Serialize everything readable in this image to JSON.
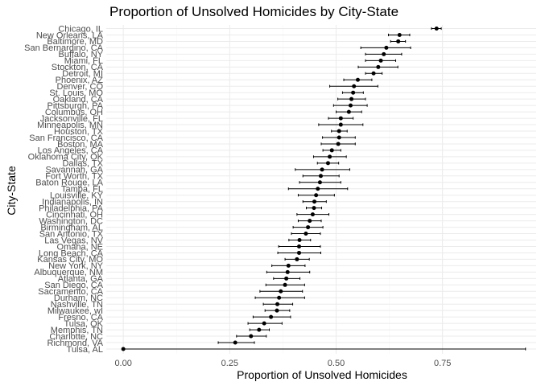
{
  "chart_data": {
    "type": "scatter",
    "title": "Proportion of Unsolved Homicides by City-State",
    "xlabel": "Proportion of Unsolved Homicides",
    "ylabel": "City-State",
    "xlim": [
      -0.04,
      0.97
    ],
    "x_ticks": [
      0.0,
      0.25,
      0.5,
      0.75
    ],
    "x_tick_labels": [
      "0.00",
      "0.25",
      "0.50",
      "0.75"
    ],
    "grid": true,
    "error_bars": true,
    "points": [
      {
        "city": "Chicago, IL",
        "estimate": 0.736,
        "low": 0.724,
        "high": 0.747
      },
      {
        "city": "New Orleans, LA",
        "estimate": 0.649,
        "low": 0.623,
        "high": 0.673
      },
      {
        "city": "Baltimore, MD",
        "estimate": 0.646,
        "low": 0.628,
        "high": 0.663
      },
      {
        "city": "San Bernardino, CA",
        "estimate": 0.618,
        "low": 0.558,
        "high": 0.675
      },
      {
        "city": "Buffalo, NY",
        "estimate": 0.612,
        "low": 0.569,
        "high": 0.654
      },
      {
        "city": "Miami, FL",
        "estimate": 0.605,
        "low": 0.569,
        "high": 0.64
      },
      {
        "city": "Stockton, CA",
        "estimate": 0.599,
        "low": 0.552,
        "high": 0.645
      },
      {
        "city": "Detroit, MI",
        "estimate": 0.588,
        "low": 0.569,
        "high": 0.608
      },
      {
        "city": "Phoenix, AZ",
        "estimate": 0.551,
        "low": 0.518,
        "high": 0.584
      },
      {
        "city": "Denver, CO",
        "estimate": 0.542,
        "low": 0.485,
        "high": 0.598
      },
      {
        "city": "St. Louis, MO",
        "estimate": 0.54,
        "low": 0.515,
        "high": 0.564
      },
      {
        "city": "Oakland, CA",
        "estimate": 0.536,
        "low": 0.504,
        "high": 0.569
      },
      {
        "city": "Pittsburgh, PA",
        "estimate": 0.534,
        "low": 0.494,
        "high": 0.573
      },
      {
        "city": "Columbus, OH",
        "estimate": 0.53,
        "low": 0.5,
        "high": 0.56
      },
      {
        "city": "Jacksonville, FL",
        "estimate": 0.511,
        "low": 0.482,
        "high": 0.54
      },
      {
        "city": "Minneapolis, MN",
        "estimate": 0.511,
        "low": 0.459,
        "high": 0.563
      },
      {
        "city": "Houston, TX",
        "estimate": 0.507,
        "low": 0.489,
        "high": 0.526
      },
      {
        "city": "San Francisco, CA",
        "estimate": 0.507,
        "low": 0.468,
        "high": 0.545
      },
      {
        "city": "Boston, MA",
        "estimate": 0.505,
        "low": 0.465,
        "high": 0.545
      },
      {
        "city": "Los Angeles, CA",
        "estimate": 0.49,
        "low": 0.469,
        "high": 0.511
      },
      {
        "city": "Oklahoma City, OK",
        "estimate": 0.485,
        "low": 0.447,
        "high": 0.524
      },
      {
        "city": "Dallas, TX",
        "estimate": 0.481,
        "low": 0.456,
        "high": 0.506
      },
      {
        "city": "Savannah, GA",
        "estimate": 0.467,
        "low": 0.404,
        "high": 0.532
      },
      {
        "city": "Fort Worth, TX",
        "estimate": 0.464,
        "low": 0.422,
        "high": 0.507
      },
      {
        "city": "Baton Rouge, LA",
        "estimate": 0.462,
        "low": 0.414,
        "high": 0.511
      },
      {
        "city": "Tampa, FL",
        "estimate": 0.457,
        "low": 0.388,
        "high": 0.527
      },
      {
        "city": "Louisville, KY",
        "estimate": 0.453,
        "low": 0.411,
        "high": 0.496
      },
      {
        "city": "Indianapolis, IN",
        "estimate": 0.449,
        "low": 0.422,
        "high": 0.477
      },
      {
        "city": "Philadelphia, PA",
        "estimate": 0.448,
        "low": 0.43,
        "high": 0.466
      },
      {
        "city": "Cincinnati, OH",
        "estimate": 0.445,
        "low": 0.408,
        "high": 0.483
      },
      {
        "city": "Washington, DC",
        "estimate": 0.438,
        "low": 0.411,
        "high": 0.465
      },
      {
        "city": "Birmingham, AL",
        "estimate": 0.434,
        "low": 0.399,
        "high": 0.469
      },
      {
        "city": "San Antonio, TX",
        "estimate": 0.429,
        "low": 0.395,
        "high": 0.463
      },
      {
        "city": "Las Vegas, NV",
        "estimate": 0.414,
        "low": 0.389,
        "high": 0.44
      },
      {
        "city": "Omaha, NE",
        "estimate": 0.413,
        "low": 0.365,
        "high": 0.463
      },
      {
        "city": "Long Beach, CA",
        "estimate": 0.413,
        "low": 0.363,
        "high": 0.464
      },
      {
        "city": "Kansas City, MO",
        "estimate": 0.408,
        "low": 0.38,
        "high": 0.437
      },
      {
        "city": "New York, NY",
        "estimate": 0.388,
        "low": 0.349,
        "high": 0.427
      },
      {
        "city": "Albuquerque, NM",
        "estimate": 0.386,
        "low": 0.337,
        "high": 0.438
      },
      {
        "city": "Atlanta, GA",
        "estimate": 0.383,
        "low": 0.353,
        "high": 0.415
      },
      {
        "city": "San Diego, CA",
        "estimate": 0.38,
        "low": 0.335,
        "high": 0.426
      },
      {
        "city": "Sacramento, CA",
        "estimate": 0.37,
        "low": 0.321,
        "high": 0.421
      },
      {
        "city": "Durham, NC",
        "estimate": 0.366,
        "low": 0.31,
        "high": 0.426
      },
      {
        "city": "Nashville, TN",
        "estimate": 0.362,
        "low": 0.329,
        "high": 0.398
      },
      {
        "city": "Milwaukee, wI",
        "estimate": 0.361,
        "low": 0.333,
        "high": 0.391
      },
      {
        "city": "Fresno, CA",
        "estimate": 0.347,
        "low": 0.305,
        "high": 0.393
      },
      {
        "city": "Tulsa, OK",
        "estimate": 0.331,
        "low": 0.293,
        "high": 0.373
      },
      {
        "city": "Memphis, TN",
        "estimate": 0.319,
        "low": 0.297,
        "high": 0.343
      },
      {
        "city": "Charlotte, NC",
        "estimate": 0.3,
        "low": 0.266,
        "high": 0.336
      },
      {
        "city": "Richmond, VA",
        "estimate": 0.263,
        "low": 0.223,
        "high": 0.308
      },
      {
        "city": "Tulsa, AL",
        "estimate": 0.0,
        "low": 0.0,
        "high": 0.945
      }
    ]
  }
}
